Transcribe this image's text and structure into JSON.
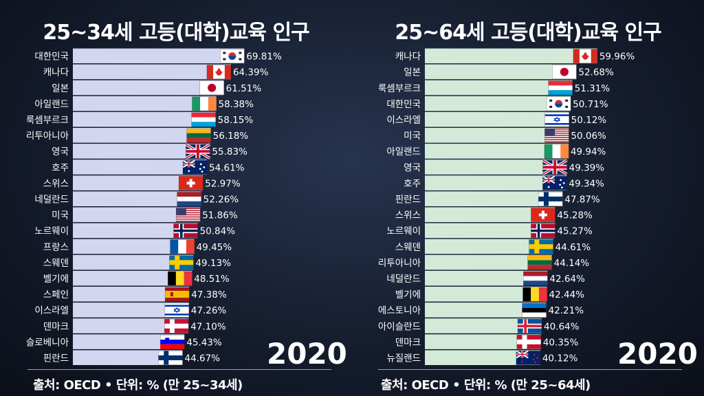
{
  "chart_data": [
    {
      "type": "bar",
      "orientation": "horizontal",
      "title": "25~34세 고등(대학)교육 인구",
      "year": "2020",
      "source": "출처: OECD • 단위: % (만 25~34세)",
      "bar_color": "#d2d6f0",
      "xlim": [
        0,
        70
      ],
      "categories": [
        "대한민국",
        "캐나다",
        "일본",
        "아일랜드",
        "룩셈부르크",
        "리투아니아",
        "영국",
        "호주",
        "스위스",
        "네덜란드",
        "미국",
        "노르웨이",
        "프랑스",
        "스웨덴",
        "벨기에",
        "스페인",
        "이스라엘",
        "덴마크",
        "슬로베니아",
        "핀란드"
      ],
      "values": [
        69.81,
        64.39,
        61.51,
        58.38,
        58.15,
        56.18,
        55.83,
        54.61,
        52.97,
        52.26,
        51.86,
        50.84,
        49.45,
        49.13,
        48.51,
        47.38,
        47.26,
        47.1,
        45.43,
        44.67
      ],
      "value_labels": [
        "69.81%",
        "64.39%",
        "61.51%",
        "58.38%",
        "58.15%",
        "56.18%",
        "55.83%",
        "54.61%",
        "52.97%",
        "52.26%",
        "51.86%",
        "50.84%",
        "49.45%",
        "49.13%",
        "48.51%",
        "47.38%",
        "47.26%",
        "47.10%",
        "45.43%",
        "44.67%"
      ],
      "flags": [
        "kr",
        "ca",
        "jp",
        "ie",
        "lu",
        "lt",
        "gb",
        "au",
        "ch",
        "nl",
        "us",
        "no",
        "fr",
        "se",
        "be",
        "es",
        "il",
        "dk",
        "si",
        "fi"
      ]
    },
    {
      "type": "bar",
      "orientation": "horizontal",
      "title": "25~64세 고등(대학)교육 인구",
      "year": "2020",
      "source": "출처: OECD • 단위: % (만 25~64세)",
      "bar_color": "#d4ead9",
      "xlim": [
        0,
        60
      ],
      "categories": [
        "캐나다",
        "일본",
        "룩셈부르크",
        "대한민국",
        "이스라엘",
        "미국",
        "아일랜드",
        "영국",
        "호주",
        "핀란드",
        "스위스",
        "노르웨이",
        "스웨덴",
        "리투아니아",
        "네덜란드",
        "벨기에",
        "에스토니아",
        "아이슬란드",
        "덴마크",
        "뉴질랜드"
      ],
      "values": [
        59.96,
        52.68,
        51.31,
        50.71,
        50.12,
        50.06,
        49.94,
        49.39,
        49.34,
        47.87,
        45.28,
        45.27,
        44.61,
        44.14,
        42.64,
        42.44,
        42.21,
        40.64,
        40.35,
        40.12
      ],
      "value_labels": [
        "59.96%",
        "52.68%",
        "51.31%",
        "50.71%",
        "50.12%",
        "50.06%",
        "49.94%",
        "49.39%",
        "49.34%",
        "47.87%",
        "45.28%",
        "45.27%",
        "44.61%",
        "44.14%",
        "42.64%",
        "42.44%",
        "42.21%",
        "40.64%",
        "40.35%",
        "40.12%"
      ],
      "flags": [
        "ca",
        "jp",
        "lu",
        "kr",
        "il",
        "us",
        "ie",
        "gb",
        "au",
        "fi",
        "ch",
        "no",
        "se",
        "lt",
        "nl",
        "be",
        "ee",
        "is",
        "dk",
        "nz"
      ]
    }
  ]
}
